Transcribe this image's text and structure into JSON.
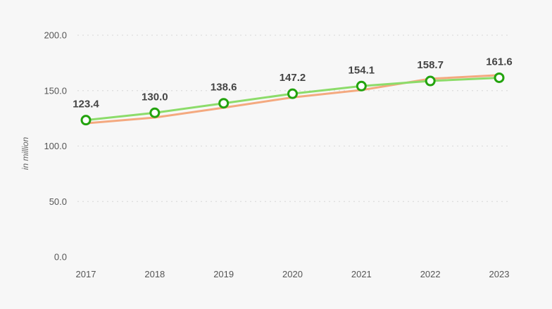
{
  "chart_data": {
    "type": "line",
    "categories": [
      "2017",
      "2018",
      "2019",
      "2020",
      "2021",
      "2022",
      "2023"
    ],
    "series": [
      {
        "values": [
          123.4,
          130.0,
          138.6,
          147.2,
          154.1,
          158.7,
          161.6
        ],
        "color": "#8cdc6a",
        "markers": true,
        "data_labels": true
      },
      {
        "values": [
          120.5,
          125.7,
          134.6,
          143.9,
          150.5,
          160.7,
          164.0
        ],
        "color": "#f4a97f",
        "markers": false,
        "data_labels": false
      }
    ],
    "yticks": [
      "0.0",
      "50.0",
      "100.0",
      "150.0",
      "200.0"
    ],
    "ylabel": "in million",
    "xlabel": "",
    "title": "",
    "ylim": [
      0,
      200
    ],
    "grid": true,
    "marker_color": "#23a30e"
  }
}
